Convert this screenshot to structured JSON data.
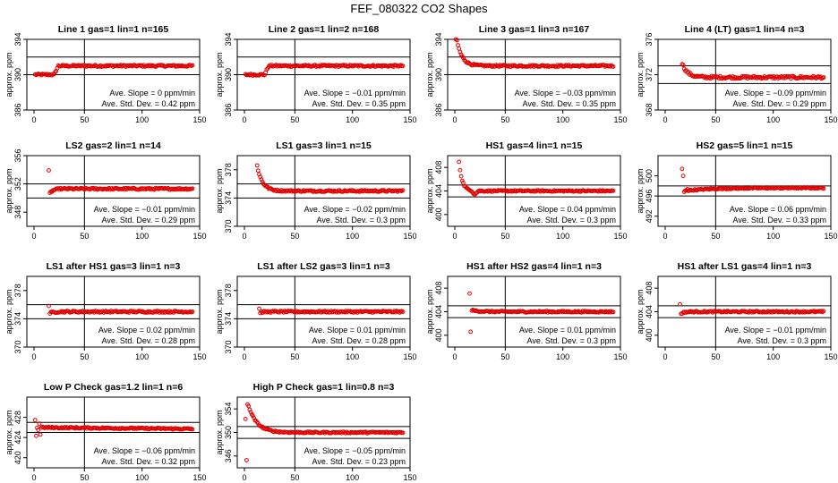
{
  "figure": {
    "title": "FEF_080322  CO2 Shapes"
  },
  "style": {
    "point_color": "#e00000",
    "axis_color": "#000000"
  },
  "chart_data": [
    {
      "type": "scatter",
      "title": "Line 1 gas=1 lin=1 n=165",
      "ylabel": "approx. ppm",
      "xlim": [
        0,
        150
      ],
      "ylim": [
        386,
        394
      ],
      "xticks": [
        0,
        50,
        100,
        150
      ],
      "yticks": [
        386,
        390,
        394
      ],
      "ref_lines": [
        392,
        390
      ],
      "annotation": [
        "Ave. Slope =  0 ppm/min",
        "Ave. Std. Dev. =  0.42 ppm"
      ],
      "shape": {
        "start": 1,
        "profile": "step_up",
        "base": 391,
        "init": 390,
        "noise": 0.1
      }
    },
    {
      "type": "scatter",
      "title": "Line 2 gas=1 lin=2 n=168",
      "ylabel": "approx. ppm",
      "xlim": [
        0,
        150
      ],
      "ylim": [
        386,
        394
      ],
      "xticks": [
        0,
        50,
        100,
        150
      ],
      "yticks": [
        386,
        390,
        394
      ],
      "ref_lines": [
        392,
        390
      ],
      "annotation": [
        "Ave. Slope =  −0.01 ppm/min",
        "Ave. Std. Dev. =  0.35 ppm"
      ],
      "shape": {
        "start": 1,
        "profile": "step_up",
        "base": 391,
        "init": 390,
        "noise": 0.1
      }
    },
    {
      "type": "scatter",
      "title": "Line 3 gas=1 lin=3 n=167",
      "ylabel": "approx. ppm",
      "xlim": [
        0,
        150
      ],
      "ylim": [
        386,
        394
      ],
      "xticks": [
        0,
        50,
        100,
        150
      ],
      "yticks": [
        386,
        390,
        394
      ],
      "ref_lines": [
        392,
        390
      ],
      "annotation": [
        "Ave. Slope =  −0.03 ppm/min",
        "Ave. Std. Dev. =  0.35 ppm"
      ],
      "shape": {
        "start": 1,
        "profile": "decay",
        "base": 391,
        "init": 394.5,
        "noise": 0.1
      }
    },
    {
      "type": "scatter",
      "title": "Line 4 (LT) gas=1 lin=4 n=3",
      "ylabel": "approx. ppm",
      "xlim": [
        0,
        150
      ],
      "ylim": [
        368,
        376
      ],
      "xticks": [
        0,
        50,
        100,
        150
      ],
      "yticks": [
        368,
        372,
        376
      ],
      "ref_lines": [
        373,
        371
      ],
      "annotation": [
        "Ave. Slope =  −0.09 ppm/min",
        "Ave. Std. Dev. =  0.29 ppm"
      ],
      "shape": {
        "start": 16,
        "profile": "decay",
        "base": 371.7,
        "init": 373.3,
        "noise": 0.15
      }
    },
    {
      "type": "scatter",
      "title": "LS2 gas=2 lin=1 n=14",
      "ylabel": "approx. ppm",
      "xlim": [
        0,
        150
      ],
      "ylim": [
        346,
        356
      ],
      "xticks": [
        0,
        50,
        100,
        150
      ],
      "yticks": [
        348,
        352,
        356
      ],
      "ref_lines": [
        352,
        350
      ],
      "annotation": [
        "Ave. Slope =  −0.01 ppm/min",
        "Ave. Std. Dev. =  0.29 ppm"
      ],
      "shape": {
        "start": 14,
        "profile": "dip_recover",
        "base": 351.3,
        "init": 353.8,
        "noise": 0.12
      }
    },
    {
      "type": "scatter",
      "title": "LS1 gas=3 lin=1 n=15",
      "ylabel": "approx. ppm",
      "xlim": [
        0,
        150
      ],
      "ylim": [
        370,
        380
      ],
      "xticks": [
        0,
        50,
        100,
        150
      ],
      "yticks": [
        370,
        374,
        378
      ],
      "ref_lines": [
        376,
        374
      ],
      "annotation": [
        "Ave. Slope =  −0.02 ppm/min",
        "Ave. Std. Dev. =  0.3 ppm"
      ],
      "shape": {
        "start": 12,
        "profile": "decay",
        "base": 375,
        "init": 378.6,
        "noise": 0.12
      }
    },
    {
      "type": "scatter",
      "title": "HS1 gas=4 lin=1 n=15",
      "ylabel": "approx. ppm",
      "xlim": [
        0,
        150
      ],
      "ylim": [
        398,
        410
      ],
      "xticks": [
        0,
        50,
        100,
        150
      ],
      "yticks": [
        400,
        404,
        408
      ],
      "ref_lines": [
        405,
        403
      ],
      "annotation": [
        "Ave. Slope =  0.04 ppm/min",
        "Ave. Std. Dev. =  0.3 ppm"
      ],
      "shape": {
        "start": 4,
        "profile": "decay_dip",
        "base": 404,
        "init": 409,
        "noise": 0.12
      }
    },
    {
      "type": "scatter",
      "title": "HS2 gas=5 lin=1 n=15",
      "ylabel": "approx. ppm",
      "xlim": [
        0,
        150
      ],
      "ylim": [
        490,
        504
      ],
      "xticks": [
        0,
        50,
        100,
        150
      ],
      "yticks": [
        492,
        496,
        500
      ],
      "ref_lines": [
        498,
        496
      ],
      "annotation": [
        "Ave. Slope =  0.06 ppm/min",
        "Ave. Std. Dev. =  0.33 ppm"
      ],
      "shape": {
        "start": 16,
        "profile": "dip_rise",
        "base": 497.6,
        "init": 501.3,
        "noise": 0.12
      }
    },
    {
      "type": "scatter",
      "title": "LS1 after HS1 gas=3 lin=1 n=3",
      "ylabel": "approx. ppm",
      "xlim": [
        0,
        150
      ],
      "ylim": [
        370,
        380
      ],
      "xticks": [
        0,
        50,
        100,
        150
      ],
      "yticks": [
        370,
        374,
        378
      ],
      "ref_lines": [
        376,
        374
      ],
      "annotation": [
        "Ave. Slope =  0.02 ppm/min",
        "Ave. Std. Dev. =  0.28 ppm"
      ],
      "shape": {
        "start": 14,
        "profile": "dip_recover",
        "base": 375,
        "init": 375.8,
        "noise": 0.12
      }
    },
    {
      "type": "scatter",
      "title": "LS1 after LS2 gas=3 lin=1 n=3",
      "ylabel": "approx. ppm",
      "xlim": [
        0,
        150
      ],
      "ylim": [
        370,
        380
      ],
      "xticks": [
        0,
        50,
        100,
        150
      ],
      "yticks": [
        370,
        374,
        378
      ],
      "ref_lines": [
        376,
        374
      ],
      "annotation": [
        "Ave. Slope =  0.01 ppm/min",
        "Ave. Std. Dev. =  0.28 ppm"
      ],
      "shape": {
        "start": 14,
        "profile": "dip_recover",
        "base": 375,
        "init": 375.4,
        "noise": 0.12
      }
    },
    {
      "type": "scatter",
      "title": "HS1 after HS2 gas=4 lin=1 n=3",
      "ylabel": "approx. ppm",
      "xlim": [
        0,
        150
      ],
      "ylim": [
        398,
        410
      ],
      "xticks": [
        0,
        50,
        100,
        150
      ],
      "yticks": [
        400,
        404,
        408
      ],
      "ref_lines": [
        405,
        403
      ],
      "annotation": [
        "Ave. Slope =  0.01 ppm/min",
        "Ave. Std. Dev. =  0.3 ppm"
      ],
      "shape": {
        "start": 14,
        "profile": "spike_dip",
        "base": 404,
        "init": 407,
        "noise": 0.12
      }
    },
    {
      "type": "scatter",
      "title": "HS1 after LS1 gas=4 lin=1 n=3",
      "ylabel": "approx. ppm",
      "xlim": [
        0,
        150
      ],
      "ylim": [
        398,
        410
      ],
      "xticks": [
        0,
        50,
        100,
        150
      ],
      "yticks": [
        400,
        404,
        408
      ],
      "ref_lines": [
        405,
        403
      ],
      "annotation": [
        "Ave. Slope =  −0.01 ppm/min",
        "Ave. Std. Dev. =  0.3 ppm"
      ],
      "shape": {
        "start": 14,
        "profile": "dip_recover",
        "base": 404,
        "init": 405.2,
        "noise": 0.12
      }
    },
    {
      "type": "scatter",
      "title": "Low P Check gas=1.2 lin=1 n=6",
      "ylabel": "approx. ppm",
      "xlim": [
        0,
        150
      ],
      "ylim": [
        418,
        432
      ],
      "xticks": [
        0,
        50,
        100,
        150
      ],
      "yticks": [
        420,
        424,
        428
      ],
      "ref_lines": [
        427,
        425
      ],
      "annotation": [
        "Ave. Slope =  −0.06 ppm/min",
        "Ave. Std. Dev. =  0.32 ppm"
      ],
      "shape": {
        "start": 1,
        "profile": "scatter_start",
        "base": 426,
        "init": 426.5,
        "noise": 0.15
      }
    },
    {
      "type": "scatter",
      "title": "High P Check gas=1 lin=0.8 n=3",
      "ylabel": "approx. ppm",
      "xlim": [
        0,
        150
      ],
      "ylim": [
        344,
        356
      ],
      "xticks": [
        0,
        50,
        100,
        150
      ],
      "yticks": [
        346,
        350,
        354
      ],
      "ref_lines": [
        351,
        349
      ],
      "annotation": [
        "Ave. Slope =  −0.05 ppm/min",
        "Ave. Std. Dev. =  0.23 ppm"
      ],
      "shape": {
        "start": 1,
        "profile": "high_decay",
        "base": 350,
        "init": 354.5,
        "noise": 0.12
      }
    }
  ]
}
